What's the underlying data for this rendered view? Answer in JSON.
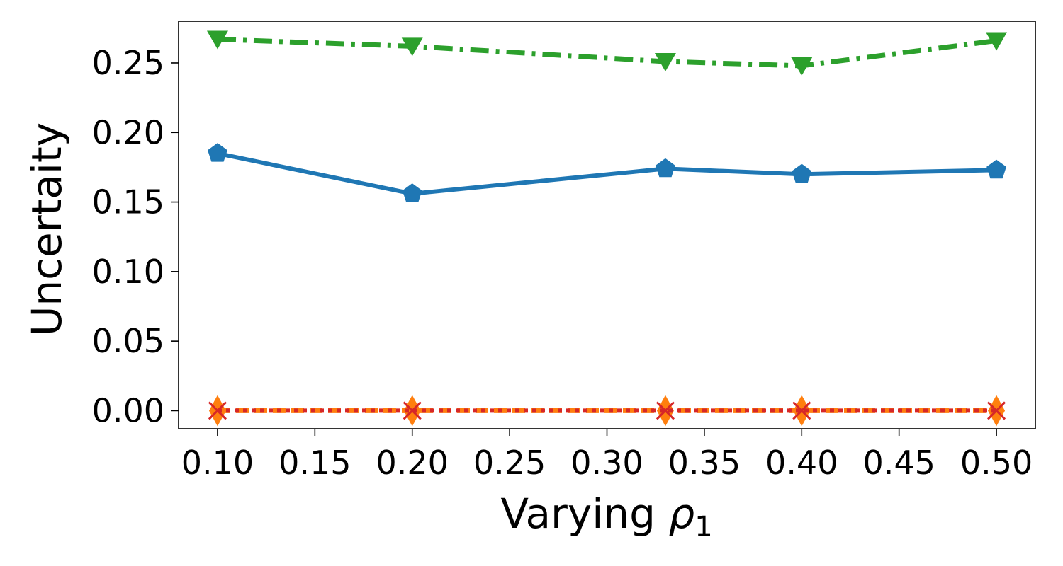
{
  "chart_data": {
    "type": "line",
    "title": "",
    "xlabel": "Varying ",
    "xlabel_symbol": "ρ",
    "xlabel_subscript": "1",
    "ylabel": "Uncertaity",
    "xlim": [
      0.08,
      0.52
    ],
    "ylim": [
      -0.013,
      0.28
    ],
    "x_ticks": [
      0.1,
      0.15,
      0.2,
      0.25,
      0.3,
      0.35,
      0.4,
      0.45,
      0.5
    ],
    "x_tick_labels": [
      "0.10",
      "0.15",
      "0.20",
      "0.25",
      "0.30",
      "0.35",
      "0.40",
      "0.45",
      "0.50"
    ],
    "y_ticks": [
      0.0,
      0.05,
      0.1,
      0.15,
      0.2,
      0.25
    ],
    "y_tick_labels": [
      "0.00",
      "0.05",
      "0.10",
      "0.15",
      "0.20",
      "0.25"
    ],
    "grid": false,
    "legend": "none",
    "x": [
      0.1,
      0.2,
      0.33,
      0.4,
      0.5
    ],
    "series": [
      {
        "color": "#1f77b4",
        "line_style": "solid",
        "marker": "pentagon",
        "values": [
          0.185,
          0.156,
          0.174,
          0.17,
          0.173
        ]
      },
      {
        "color": "#2ca02c",
        "line_style": "dashdot",
        "marker": "triangle-down",
        "values": [
          0.267,
          0.262,
          0.251,
          0.248,
          0.266
        ]
      },
      {
        "color": "#ff7f0e",
        "line_style": "dashed",
        "marker": "diamond",
        "values": [
          0.0,
          0.0,
          0.0,
          0.0,
          0.0
        ]
      },
      {
        "color": "#d62728",
        "line_style": "dotted",
        "marker": "x",
        "values": [
          0.0,
          0.0,
          0.0,
          0.0,
          0.0
        ]
      }
    ]
  }
}
